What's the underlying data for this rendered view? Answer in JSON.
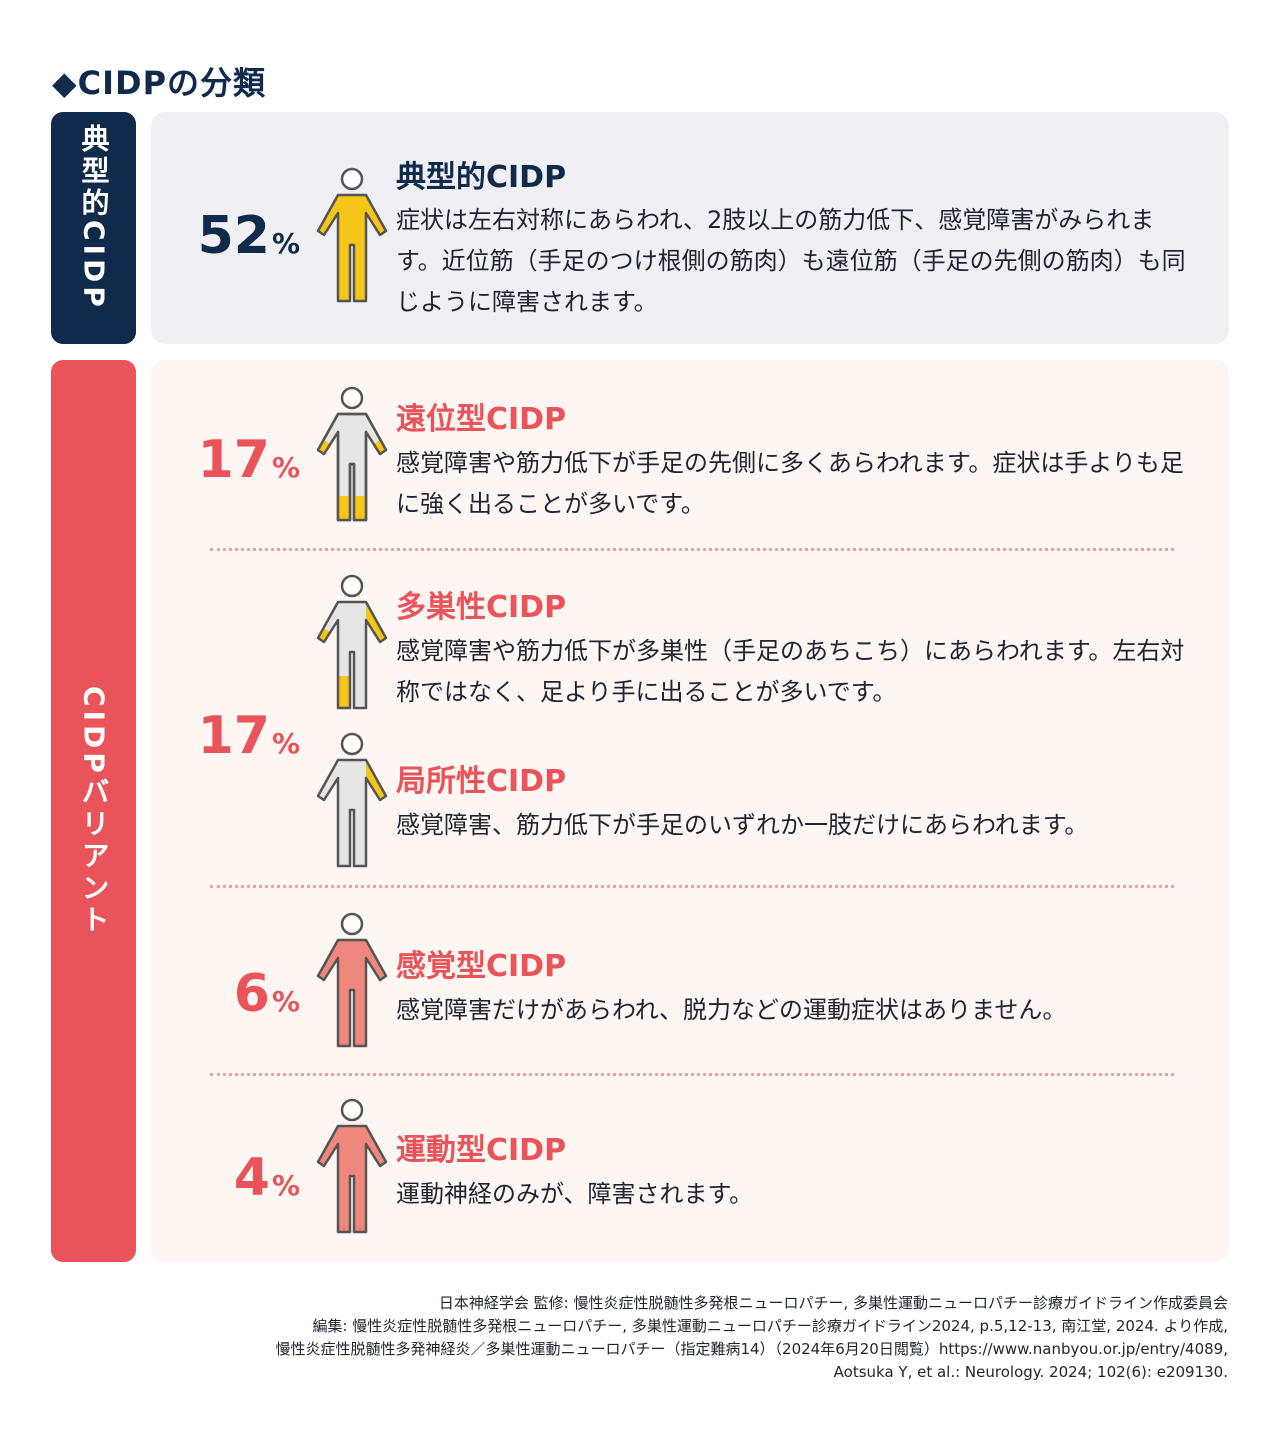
{
  "title": "◆CIDPの分類",
  "colors": {
    "navy": "#0f2a4a",
    "red": "#e9535a",
    "yellow": "#f5c518",
    "salmon": "#f0877f",
    "gray_body": "#e6e6e6"
  },
  "groups": {
    "typical_label": "典型的CIDP",
    "variant_label": "CIDPバリアント"
  },
  "entries": [
    {
      "percent": "52",
      "unit": "%",
      "title": "典型的CIDP",
      "description": "症状は左右対称にあらわれ、2肢以上の筋力低下、感覚障害がみられます。近位筋（手足のつけ根側の筋肉）も遠位筋（手足の先側の筋肉）も同じように障害されます。"
    },
    {
      "percent": "17",
      "unit": "%",
      "title": "遠位型CIDP",
      "description": "感覚障害や筋力低下が手足の先側に多くあらわれます。症状は手よりも足に強く出ることが多いです。"
    },
    {
      "percent": "17",
      "unit": "%",
      "title": "多巣性CIDP",
      "description": "感覚障害や筋力低下が多巣性（手足のあちこち）にあらわれます。左右対称ではなく、足より手に出ることが多いです。"
    },
    {
      "title": "局所性CIDP",
      "description": "感覚障害、筋力低下が手足のいずれか一肢だけにあらわれます。"
    },
    {
      "percent": "6",
      "unit": "%",
      "title": "感覚型CIDP",
      "description": "感覚障害だけがあらわれ、脱力などの運動症状はありません。"
    },
    {
      "percent": "4",
      "unit": "%",
      "title": "運動型CIDP",
      "description": "運動神経のみが、障害されます。"
    }
  ],
  "references": [
    "日本神経学会 監修: 慢性炎症性脱髄性多発根ニューロパチー, 多巣性運動ニューロパチー診療ガイドライン作成委員会",
    "編集: 慢性炎症性脱髄性多発根ニューロパチー, 多巣性運動ニューロパチー診療ガイドライン2024, p.5,12-13, 南江堂, 2024. より作成,",
    "慢性炎症性脱髄性多発神経炎／多巣性運動ニューロパチー（指定難病14）（2024年6月20日閲覧）https://www.nanbyou.or.jp/entry/4089,",
    "Aotsuka Y, et al.: Neurology. 2024; 102(6): e209130."
  ]
}
